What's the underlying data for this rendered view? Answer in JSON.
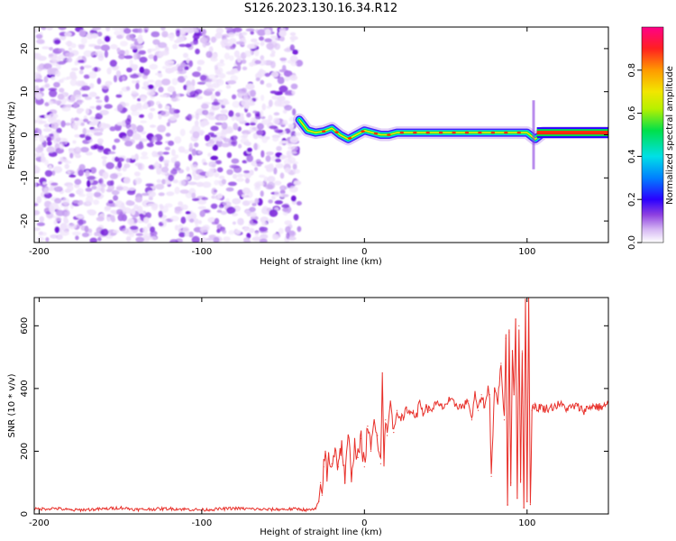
{
  "title": "S126.2023.130.16.34.R12",
  "chart_data": [
    {
      "type": "heatmap",
      "name": "spectrogram",
      "xlabel": "Height of straight line (km)",
      "ylabel": "Frequency (Hz)",
      "xlim": [
        -203,
        150
      ],
      "ylim": [
        -25,
        25
      ],
      "xticks": [
        -200,
        -100,
        0,
        100
      ],
      "xtick_labels": [
        "-200",
        "-100",
        "0",
        "100"
      ],
      "yticks": [
        -20,
        -10,
        0,
        10,
        20
      ],
      "ytick_labels": [
        "-20",
        "-10",
        "0",
        "10",
        "20"
      ],
      "noise_region_km": [
        -203,
        -40
      ],
      "signal_track": {
        "x": [
          -40,
          -35,
          -30,
          -25,
          -20,
          -15,
          -10,
          -5,
          0,
          5,
          10,
          15,
          20,
          30,
          40,
          50,
          60,
          70,
          80,
          90,
          100,
          105,
          110,
          120,
          130,
          140,
          150
        ],
        "freq_hz": [
          3.5,
          1.0,
          0.5,
          0.8,
          1.5,
          0.0,
          -1.0,
          0.0,
          1.0,
          0.5,
          0.0,
          0.0,
          0.5,
          0.5,
          0.5,
          0.5,
          0.5,
          0.5,
          0.5,
          0.5,
          0.5,
          -1.0,
          0.5,
          0.5,
          0.5,
          0.5,
          0.5
        ]
      },
      "colorbar": {
        "label": "Normalized spectral amplitude",
        "range": [
          0.0,
          1.0
        ],
        "ticks": [
          0.0,
          0.2,
          0.4,
          0.6,
          0.8
        ],
        "tick_labels": [
          "0.0",
          "0.2",
          "0.4",
          "0.6",
          "0.8"
        ],
        "colors": [
          "#ffffff",
          "#e9d5f7",
          "#b07ae8",
          "#7a1fd6",
          "#2a00ff",
          "#0090ff",
          "#00e6e6",
          "#00e04a",
          "#b6f000",
          "#f2e600",
          "#ff9a00",
          "#ff2020",
          "#ff0088"
        ]
      }
    },
    {
      "type": "line",
      "name": "snr",
      "xlabel": "Height of straight line (km)",
      "ylabel": "SNR (10 * v/v)",
      "xlim": [
        -203,
        150
      ],
      "ylim": [
        0,
        690
      ],
      "xticks": [
        -200,
        -100,
        0,
        100
      ],
      "xtick_labels": [
        "-200",
        "-100",
        "0",
        "100"
      ],
      "yticks": [
        0,
        200,
        400,
        600
      ],
      "ytick_labels": [
        "0",
        "200",
        "400",
        "600"
      ],
      "color": "#e8302a",
      "series": [
        {
          "name": "SNR",
          "x": [
            -203,
            -190,
            -180,
            -160,
            -150,
            -140,
            -120,
            -100,
            -80,
            -60,
            -40,
            -35,
            -30,
            -28,
            -27,
            -26,
            -25,
            -24,
            -23,
            -22,
            -20,
            -18,
            -16,
            -14,
            -12,
            -10,
            -8,
            -6,
            -4,
            -2,
            0,
            2,
            4,
            6,
            8,
            10,
            11,
            12,
            13,
            14,
            16,
            18,
            20,
            22,
            24,
            26,
            28,
            30,
            32,
            34,
            36,
            38,
            40,
            44,
            48,
            52,
            56,
            60,
            64,
            66,
            68,
            70,
            72,
            74,
            76,
            77,
            78,
            80,
            82,
            84,
            86,
            87,
            88,
            89,
            90,
            91,
            92,
            93,
            94,
            95,
            96,
            97,
            98,
            99,
            100,
            101,
            102,
            103,
            104,
            105,
            106,
            108,
            110,
            115,
            120,
            125,
            130,
            135,
            140,
            145,
            150
          ],
          "y": [
            15,
            18,
            12,
            16,
            20,
            14,
            17,
            13,
            18,
            14,
            16,
            12,
            15,
            40,
            100,
            60,
            150,
            200,
            120,
            180,
            160,
            210,
            150,
            230,
            100,
            250,
            130,
            220,
            180,
            240,
            150,
            280,
            200,
            300,
            250,
            160,
            450,
            180,
            300,
            250,
            360,
            260,
            330,
            310,
            300,
            340,
            320,
            330,
            310,
            360,
            320,
            340,
            330,
            350,
            340,
            360,
            350,
            340,
            360,
            300,
            380,
            330,
            380,
            340,
            400,
            380,
            120,
            400,
            360,
            480,
            300,
            560,
            30,
            580,
            100,
            520,
            380,
            620,
            50,
            600,
            110,
            520,
            20,
            700,
            40,
            690,
            30,
            330,
            350,
            340,
            330,
            345,
            335,
            340,
            350,
            335,
            345,
            330,
            345,
            340,
            350
          ]
        }
      ]
    }
  ]
}
